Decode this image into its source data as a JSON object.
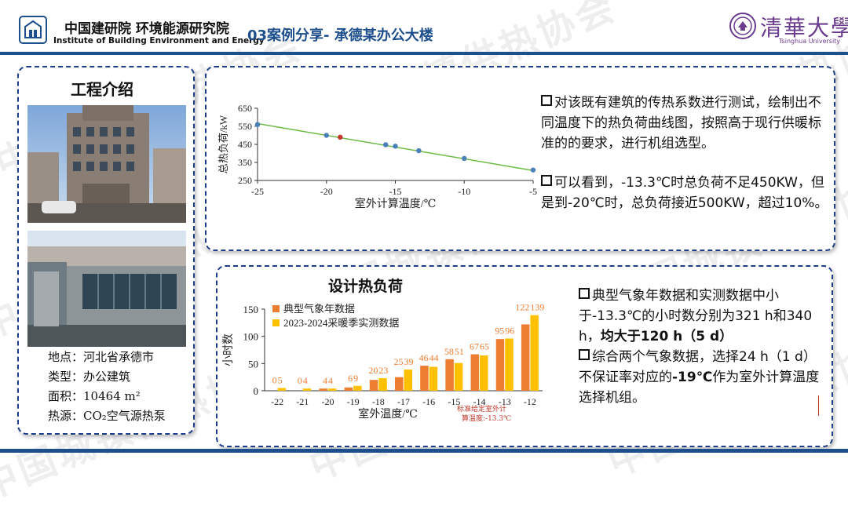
{
  "header": {
    "institute_cn": "中国建研院 环境能源研究院",
    "institute_en": "Institute of Building Environment and Energy",
    "slide_title": "03案例分享- 承德某办公大楼",
    "university_cn": "清華大學",
    "university_en": "Tsinghua University"
  },
  "watermark": "中国城镇供热协会",
  "left_panel": {
    "title": "工程介绍",
    "info": [
      {
        "label": "地点：",
        "value": "河北省承德市"
      },
      {
        "label": "类型：",
        "value": "办公建筑"
      },
      {
        "label": "面积：",
        "value": "10464 m²"
      },
      {
        "label": "热源：",
        "value": "CO₂空气源热泵"
      }
    ]
  },
  "top_panel": {
    "bullets": [
      "对该既有建筑的传热系数进行测试，绘制出不同温度下的热负荷曲线图，按照高于现行供暖标准的的要求，进行机组选型。",
      "可以看到，-13.3℃时总负荷不足450KW，但是到-20℃时，总负荷接近500KW，超过10%。"
    ]
  },
  "bottom_panel": {
    "title": "设计热负荷",
    "bullet1_text": "典型气象年数据和实测数据中小于-13.3℃的小时数分别为321 h和340 h，",
    "bullet1_bold": "均大于120 h（5 d）",
    "bullet2_pre": "综合两个气象数据，选择24 h（1 d）不保证率对应的",
    "bullet2_bold": "-19℃",
    "bullet2_post": "作为室外计算温度选择机组。",
    "annotation_line1": "标准给定室外计",
    "annotation_line2": "算温度:-13.3℃"
  },
  "chart_data": [
    {
      "type": "scatter",
      "title": "",
      "xlabel": "室外计算温度/℃",
      "ylabel": "总热负荷/kW",
      "xlim": [
        -25,
        -5
      ],
      "ylim": [
        250,
        650
      ],
      "x_ticks": [
        -25,
        -20,
        -15,
        -10,
        -5
      ],
      "y_ticks": [
        250,
        350,
        450,
        550,
        650
      ],
      "x_tick_labels": [
        "-25",
        "-20",
        "-15",
        "-10",
        "-5"
      ],
      "y_tick_labels": [
        "250",
        "350",
        "450",
        "550",
        "650"
      ],
      "points": [
        {
          "x": -25,
          "y": 560,
          "highlight": false
        },
        {
          "x": -20,
          "y": 500,
          "highlight": false
        },
        {
          "x": -19,
          "y": 490,
          "highlight": true
        },
        {
          "x": -15.7,
          "y": 448,
          "highlight": false
        },
        {
          "x": -15,
          "y": 440,
          "highlight": false
        },
        {
          "x": -13.3,
          "y": 415,
          "highlight": false
        },
        {
          "x": -10,
          "y": 372,
          "highlight": false
        },
        {
          "x": -5,
          "y": 308,
          "highlight": false
        }
      ],
      "trend_line": {
        "x": [
          -25,
          -5
        ],
        "y": [
          565,
          305
        ]
      },
      "colors": {
        "point": "#4a7fb8",
        "highlight": "#c0392b",
        "line": "#6dbb45"
      }
    },
    {
      "type": "bar",
      "title": "",
      "xlabel": "室外温度/℃",
      "ylabel": "小时数",
      "ylim": [
        0,
        150
      ],
      "y_ticks": [
        0,
        50,
        100,
        150
      ],
      "y_tick_labels": [
        "0",
        "50",
        "100",
        "150"
      ],
      "categories": [
        "-22",
        "-21",
        "-20",
        "-19",
        "-18",
        "-17",
        "-16",
        "-15",
        "-14",
        "-13",
        "-12"
      ],
      "series": [
        {
          "name": "典型气象年数据",
          "color": "#ed7d31",
          "values": [
            0,
            0,
            4,
            6,
            20,
            25,
            46,
            58,
            67,
            95,
            122
          ]
        },
        {
          "name": "2023-2024采暖季实测数据",
          "color": "#ffc000",
          "values": [
            5,
            4,
            4,
            9,
            23,
            39,
            44,
            51,
            65,
            96,
            139
          ]
        }
      ],
      "value_labels": [
        "0",
        "5",
        "0",
        "4",
        "4",
        "4",
        "6",
        "9",
        "20",
        "23",
        "25",
        "39",
        "46",
        "44",
        "58",
        "51",
        "67",
        "65",
        "95",
        "96",
        "122",
        "139"
      ]
    }
  ]
}
